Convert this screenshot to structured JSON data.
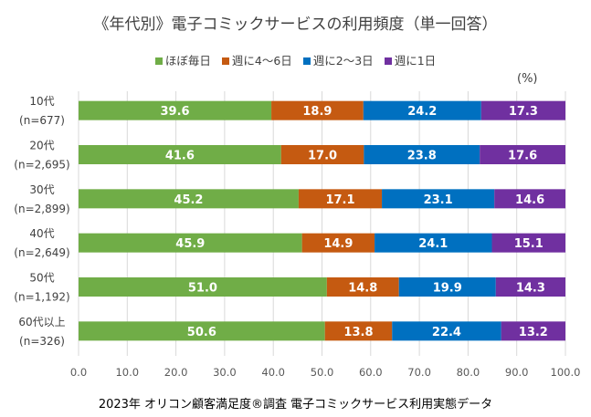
{
  "chart_data": {
    "type": "bar",
    "orientation": "horizontal",
    "stacked": true,
    "title": "《年代別》電子コミックサービスの利用頻度（単一回答）",
    "unit_label": "(%)",
    "categories": [
      {
        "label": "10代",
        "n": "(n=677)"
      },
      {
        "label": "20代",
        "n": "(n=2,695)"
      },
      {
        "label": "30代",
        "n": "(n=2,899)"
      },
      {
        "label": "40代",
        "n": "(n=2,649)"
      },
      {
        "label": "50代",
        "n": "(n=1,192)"
      },
      {
        "label": "60代以上",
        "n": "(n=326)"
      }
    ],
    "series": [
      {
        "name": "ほぼ毎日",
        "color": "#70ad47",
        "values": [
          39.6,
          41.6,
          45.2,
          45.9,
          51.0,
          50.6
        ]
      },
      {
        "name": "週に4～6日",
        "color": "#c55a11",
        "values": [
          18.9,
          17.0,
          17.1,
          14.9,
          14.8,
          13.8
        ]
      },
      {
        "name": "週に2～3日",
        "color": "#0070c0",
        "values": [
          24.2,
          23.8,
          23.1,
          24.1,
          19.9,
          22.4
        ]
      },
      {
        "name": "週に1日",
        "color": "#7030a0",
        "values": [
          17.3,
          17.6,
          14.6,
          15.1,
          14.3,
          13.2
        ]
      }
    ],
    "xlim": [
      0,
      100
    ],
    "xticks": [
      "0.0",
      "10.0",
      "20.0",
      "30.0",
      "40.0",
      "50.0",
      "60.0",
      "70.0",
      "80.0",
      "90.0",
      "100.0"
    ],
    "grid": true,
    "legend_position": "top"
  },
  "footer": "2023年 オリコン顧客満足度®調査 電子コミックサービス利用実態データ"
}
